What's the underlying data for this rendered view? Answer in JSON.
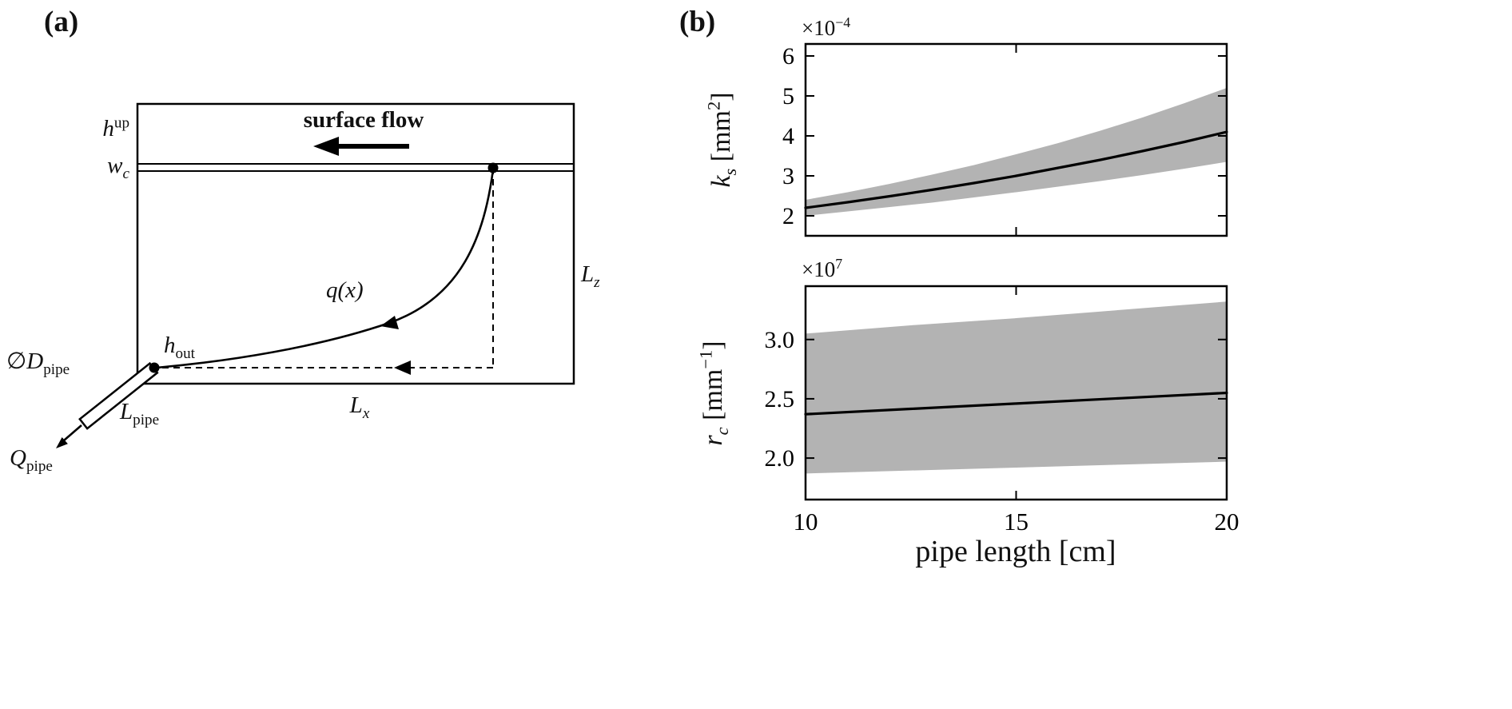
{
  "panel_a": {
    "label": "(a)",
    "surface_flow": "surface flow",
    "labels": {
      "h_up": {
        "base": "h",
        "sup": "up"
      },
      "w_c": {
        "base": "w",
        "sub": "c"
      },
      "q_x": {
        "text": "q(x)"
      },
      "L_z": {
        "base": "L",
        "sub": "z"
      },
      "h_out": {
        "base": "h",
        "sub": "out"
      },
      "D_pipe": {
        "pre": "∅",
        "base": "D",
        "sub": "pipe"
      },
      "L_pipe": {
        "base": "L",
        "sub": "pipe"
      },
      "L_x": {
        "base": "L",
        "sub": "x"
      },
      "Q_pipe": {
        "base": "Q",
        "sub": "pipe"
      }
    }
  },
  "panel_b": {
    "label": "(b)",
    "xlabel": "pipe length [cm]",
    "top_chart": {
      "offset_prefix": "×10",
      "offset_exp": "−4",
      "ylabel": {
        "base": "k",
        "sub": "s",
        "unit_open": " [mm",
        "unit_sup": "2",
        "unit_close": "]"
      }
    },
    "bottom_chart": {
      "offset_prefix": "×10",
      "offset_exp": "7",
      "ylabel": {
        "base": "r",
        "sub": "c",
        "unit_open": " [mm",
        "unit_sup": "−1",
        "unit_close": "]"
      }
    }
  },
  "colors": {
    "band": "#b3b3b3",
    "line": "#000000"
  },
  "chart_data": [
    {
      "id": "ks",
      "type": "line",
      "ylabel": "k_s [mm^2]",
      "y_offset": "×10^−4",
      "x": [
        10,
        11,
        12,
        13,
        14,
        15,
        16,
        17,
        18,
        19,
        20
      ],
      "series": [
        {
          "name": "mean",
          "values": [
            2.2,
            2.34,
            2.49,
            2.65,
            2.82,
            3.0,
            3.2,
            3.4,
            3.62,
            3.85,
            4.1
          ]
        }
      ],
      "band": {
        "lower": [
          2.0,
          2.11,
          2.22,
          2.33,
          2.46,
          2.59,
          2.73,
          2.87,
          3.02,
          3.18,
          3.35
        ],
        "upper": [
          2.4,
          2.59,
          2.8,
          3.03,
          3.27,
          3.54,
          3.82,
          4.13,
          4.46,
          4.82,
          5.2
        ]
      },
      "xlim": [
        10,
        20
      ],
      "ylim": [
        1.5,
        6.3
      ],
      "yticks": [
        2,
        3,
        4,
        5,
        6
      ],
      "ytick_labels": [
        "2",
        "3",
        "4",
        "5",
        "6"
      ],
      "xticks": [
        10,
        15,
        20
      ],
      "xtick_labels": [
        "10",
        "15",
        "20"
      ],
      "show_xticklabels": false
    },
    {
      "id": "rc",
      "type": "line",
      "ylabel": "r_c [mm^−1]",
      "y_offset": "×10^7",
      "xlabel": "pipe length [cm]",
      "x": [
        10,
        12.5,
        15,
        17.5,
        20
      ],
      "series": [
        {
          "name": "mean",
          "values": [
            2.37,
            2.415,
            2.46,
            2.505,
            2.55
          ]
        }
      ],
      "band": {
        "lower": [
          1.87,
          1.895,
          1.92,
          1.945,
          1.97
        ],
        "upper": [
          3.05,
          3.12,
          3.18,
          3.25,
          3.32
        ]
      },
      "xlim": [
        10,
        20
      ],
      "ylim": [
        1.65,
        3.45
      ],
      "yticks": [
        2.0,
        2.5,
        3.0
      ],
      "ytick_labels": [
        "2.0",
        "2.5",
        "3.0"
      ],
      "xticks": [
        10,
        15,
        20
      ],
      "xtick_labels": [
        "10",
        "15",
        "20"
      ],
      "show_xticklabels": true
    }
  ]
}
